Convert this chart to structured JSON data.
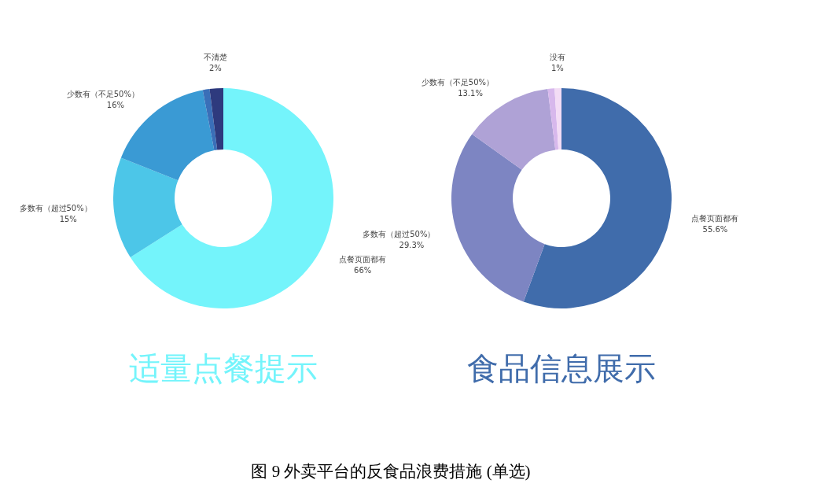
{
  "chart_data": [
    {
      "type": "donut",
      "title": "适量点餐提示",
      "categories": [
        "点餐页面都有",
        "多数有（超过50%）",
        "少数有（不足50%）",
        null,
        "不清楚"
      ],
      "values": [
        66,
        15,
        16,
        1,
        2
      ],
      "value_labels": [
        "66%",
        "15%",
        "16%",
        null,
        "2%"
      ],
      "colors": [
        "#74f4fb",
        "#4cc6e8",
        "#3a9ad4",
        "#3a6fb8",
        "#2e3a7e"
      ],
      "annotations": [
        "图 9 外卖平台的反食品浪费措施 (单选)"
      ]
    },
    {
      "type": "donut",
      "title": "食品信息展示",
      "categories": [
        "点餐页面都有",
        "多数有（超过50%）",
        "少数有（不足50%）",
        null,
        "没有"
      ],
      "values": [
        55.6,
        29.3,
        13.1,
        1,
        1
      ],
      "value_labels": [
        "55.6%",
        "29.3%",
        "13.1%",
        null,
        "1%"
      ],
      "colors": [
        "#406cab",
        "#7d85c2",
        "#afa2d6",
        "#d7b8ec",
        "#f3dcf5"
      ]
    }
  ]
}
